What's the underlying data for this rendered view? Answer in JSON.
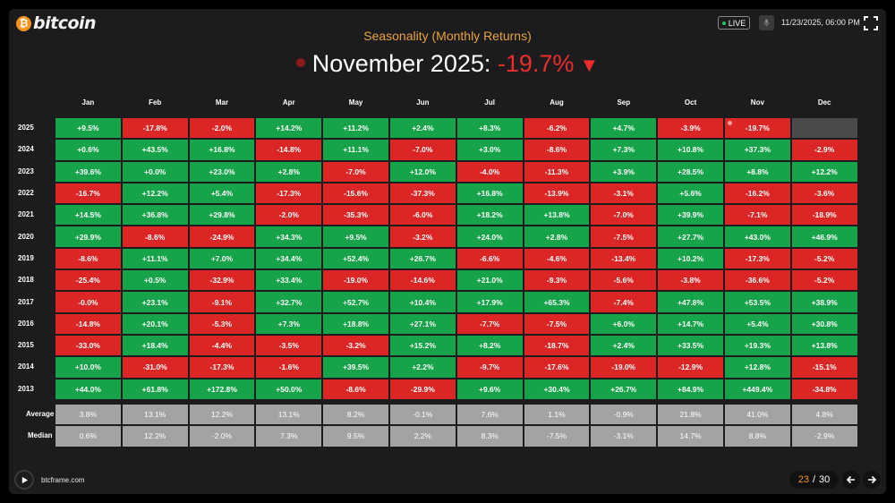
{
  "header": {
    "brand": "bitcoin",
    "live_label": "LIVE",
    "datetime": "11/23/2025, 06:00 PM",
    "icons": [
      "bitcoin-logo-icon",
      "microphone-icon",
      "fullscreen-icon"
    ]
  },
  "footer": {
    "site": "btcframe.com",
    "page_current": "23",
    "page_separator": "/",
    "page_total": "30",
    "icons": [
      "play-icon",
      "arrow-left-icon",
      "arrow-right-icon"
    ]
  },
  "colors": {
    "positive": "#16a34a",
    "negative": "#dc2626",
    "stat": "#a3a3a3",
    "accent": "#f7931a",
    "subtitle": "#e8a33c"
  },
  "chart_data": {
    "type": "heatmap",
    "title": "Seasonality (Monthly Returns)",
    "headline": {
      "label": "November 2025:",
      "value": "-19.7%",
      "direction": "down"
    },
    "months": [
      "Jan",
      "Feb",
      "Mar",
      "Apr",
      "May",
      "Jun",
      "Jul",
      "Aug",
      "Sep",
      "Oct",
      "Nov",
      "Dec"
    ],
    "rows": [
      {
        "year": "2025",
        "values": [
          "+9.5%",
          "-17.8%",
          "-2.0%",
          "+14.2%",
          "+11.2%",
          "+2.4%",
          "+8.3%",
          "-6.2%",
          "+4.7%",
          "-3.9%",
          "-19.7%",
          ""
        ]
      },
      {
        "year": "2024",
        "values": [
          "+0.6%",
          "+43.5%",
          "+16.8%",
          "-14.8%",
          "+11.1%",
          "-7.0%",
          "+3.0%",
          "-8.6%",
          "+7.3%",
          "+10.8%",
          "+37.3%",
          "-2.9%"
        ]
      },
      {
        "year": "2023",
        "values": [
          "+39.6%",
          "+0.0%",
          "+23.0%",
          "+2.8%",
          "-7.0%",
          "+12.0%",
          "-4.0%",
          "-11.3%",
          "+3.9%",
          "+28.5%",
          "+8.8%",
          "+12.2%"
        ]
      },
      {
        "year": "2022",
        "values": [
          "-16.7%",
          "+12.2%",
          "+5.4%",
          "-17.3%",
          "-15.6%",
          "-37.3%",
          "+16.8%",
          "-13.9%",
          "-3.1%",
          "+5.6%",
          "-16.2%",
          "-3.6%"
        ]
      },
      {
        "year": "2021",
        "values": [
          "+14.5%",
          "+36.8%",
          "+29.8%",
          "-2.0%",
          "-35.3%",
          "-6.0%",
          "+18.2%",
          "+13.8%",
          "-7.0%",
          "+39.9%",
          "-7.1%",
          "-18.9%"
        ]
      },
      {
        "year": "2020",
        "values": [
          "+29.9%",
          "-8.6%",
          "-24.9%",
          "+34.3%",
          "+9.5%",
          "-3.2%",
          "+24.0%",
          "+2.8%",
          "-7.5%",
          "+27.7%",
          "+43.0%",
          "+46.9%"
        ]
      },
      {
        "year": "2019",
        "values": [
          "-8.6%",
          "+11.1%",
          "+7.0%",
          "+34.4%",
          "+52.4%",
          "+26.7%",
          "-6.6%",
          "-4.6%",
          "-13.4%",
          "+10.2%",
          "-17.3%",
          "-5.2%"
        ]
      },
      {
        "year": "2018",
        "values": [
          "-25.4%",
          "+0.5%",
          "-32.9%",
          "+33.4%",
          "-19.0%",
          "-14.6%",
          "+21.0%",
          "-9.3%",
          "-5.6%",
          "-3.8%",
          "-36.6%",
          "-5.2%"
        ]
      },
      {
        "year": "2017",
        "values": [
          "-0.0%",
          "+23.1%",
          "-9.1%",
          "+32.7%",
          "+52.7%",
          "+10.4%",
          "+17.9%",
          "+65.3%",
          "-7.4%",
          "+47.8%",
          "+53.5%",
          "+38.9%"
        ]
      },
      {
        "year": "2016",
        "values": [
          "-14.8%",
          "+20.1%",
          "-5.3%",
          "+7.3%",
          "+18.8%",
          "+27.1%",
          "-7.7%",
          "-7.5%",
          "+6.0%",
          "+14.7%",
          "+5.4%",
          "+30.8%"
        ]
      },
      {
        "year": "2015",
        "values": [
          "-33.0%",
          "+18.4%",
          "-4.4%",
          "-3.5%",
          "-3.2%",
          "+15.2%",
          "+8.2%",
          "-18.7%",
          "+2.4%",
          "+33.5%",
          "+19.3%",
          "+13.8%"
        ]
      },
      {
        "year": "2014",
        "values": [
          "+10.0%",
          "-31.0%",
          "-17.3%",
          "-1.6%",
          "+39.5%",
          "+2.2%",
          "-9.7%",
          "-17.6%",
          "-19.0%",
          "-12.9%",
          "+12.8%",
          "-15.1%"
        ]
      },
      {
        "year": "2013",
        "values": [
          "+44.0%",
          "+61.8%",
          "+172.8%",
          "+50.0%",
          "-8.6%",
          "-29.9%",
          "+9.6%",
          "+30.4%",
          "+26.7%",
          "+84.9%",
          "+449.4%",
          "-34.8%"
        ]
      }
    ],
    "stats": [
      {
        "label": "Average",
        "values": [
          "3.8%",
          "13.1%",
          "12.2%",
          "13.1%",
          "8.2%",
          "-0.1%",
          "7.6%",
          "1.1%",
          "-0.9%",
          "21.8%",
          "41.0%",
          "4.8%"
        ]
      },
      {
        "label": "Median",
        "values": [
          "0.6%",
          "12.2%",
          "-2.0%",
          "7.3%",
          "9.5%",
          "2.2%",
          "8.3%",
          "-7.5%",
          "-3.1%",
          "14.7%",
          "8.8%",
          "-2.9%"
        ]
      }
    ]
  }
}
